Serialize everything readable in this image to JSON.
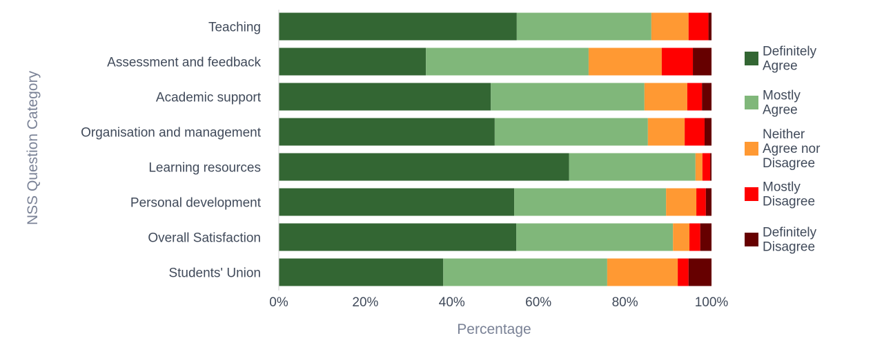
{
  "chart_data": {
    "type": "bar",
    "orientation": "horizontal",
    "stacked": true,
    "title": "",
    "xlabel": "Percentage",
    "ylabel": "NSS Question Category",
    "xlim": [
      0,
      100
    ],
    "xticks": [
      "0%",
      "20%",
      "40%",
      "60%",
      "80%",
      "100%"
    ],
    "grid": false,
    "legend_position": "right",
    "categories": [
      "Teaching",
      "Assessment and feedback",
      "Academic support",
      "Organisation and management",
      "Learning resources",
      "Personal development",
      "Overall Satisfaction",
      "Students' Union"
    ],
    "series": [
      {
        "name": "Definitely Agree",
        "legend_lines": [
          "Definitely",
          "Agree"
        ],
        "color": "#336633",
        "values": [
          55.0,
          34.0,
          49.0,
          49.9,
          67.1,
          54.4,
          54.9,
          38.0
        ]
      },
      {
        "name": "Mostly Agree",
        "legend_lines": [
          "Mostly",
          "Agree"
        ],
        "color": "#80b77a",
        "values": [
          31.1,
          37.6,
          35.5,
          35.4,
          29.2,
          35.1,
          36.2,
          37.9
        ]
      },
      {
        "name": "Neither Agree nor Disagree",
        "legend_lines": [
          "Neither",
          "Agree nor",
          "Disagree"
        ],
        "color": "#ff9933",
        "values": [
          8.6,
          16.9,
          9.9,
          8.5,
          1.6,
          7.0,
          3.8,
          16.3
        ]
      },
      {
        "name": "Mostly Disagree",
        "legend_lines": [
          "Mostly",
          "Disagree"
        ],
        "color": "#ff0000",
        "values": [
          4.6,
          7.2,
          3.4,
          4.6,
          1.8,
          2.2,
          2.5,
          2.5
        ]
      },
      {
        "name": "Definitely Disagree",
        "legend_lines": [
          "Definitely",
          "Disagree"
        ],
        "color": "#660000",
        "values": [
          0.7,
          4.3,
          2.2,
          1.6,
          0.3,
          1.3,
          2.6,
          5.3
        ]
      }
    ]
  }
}
